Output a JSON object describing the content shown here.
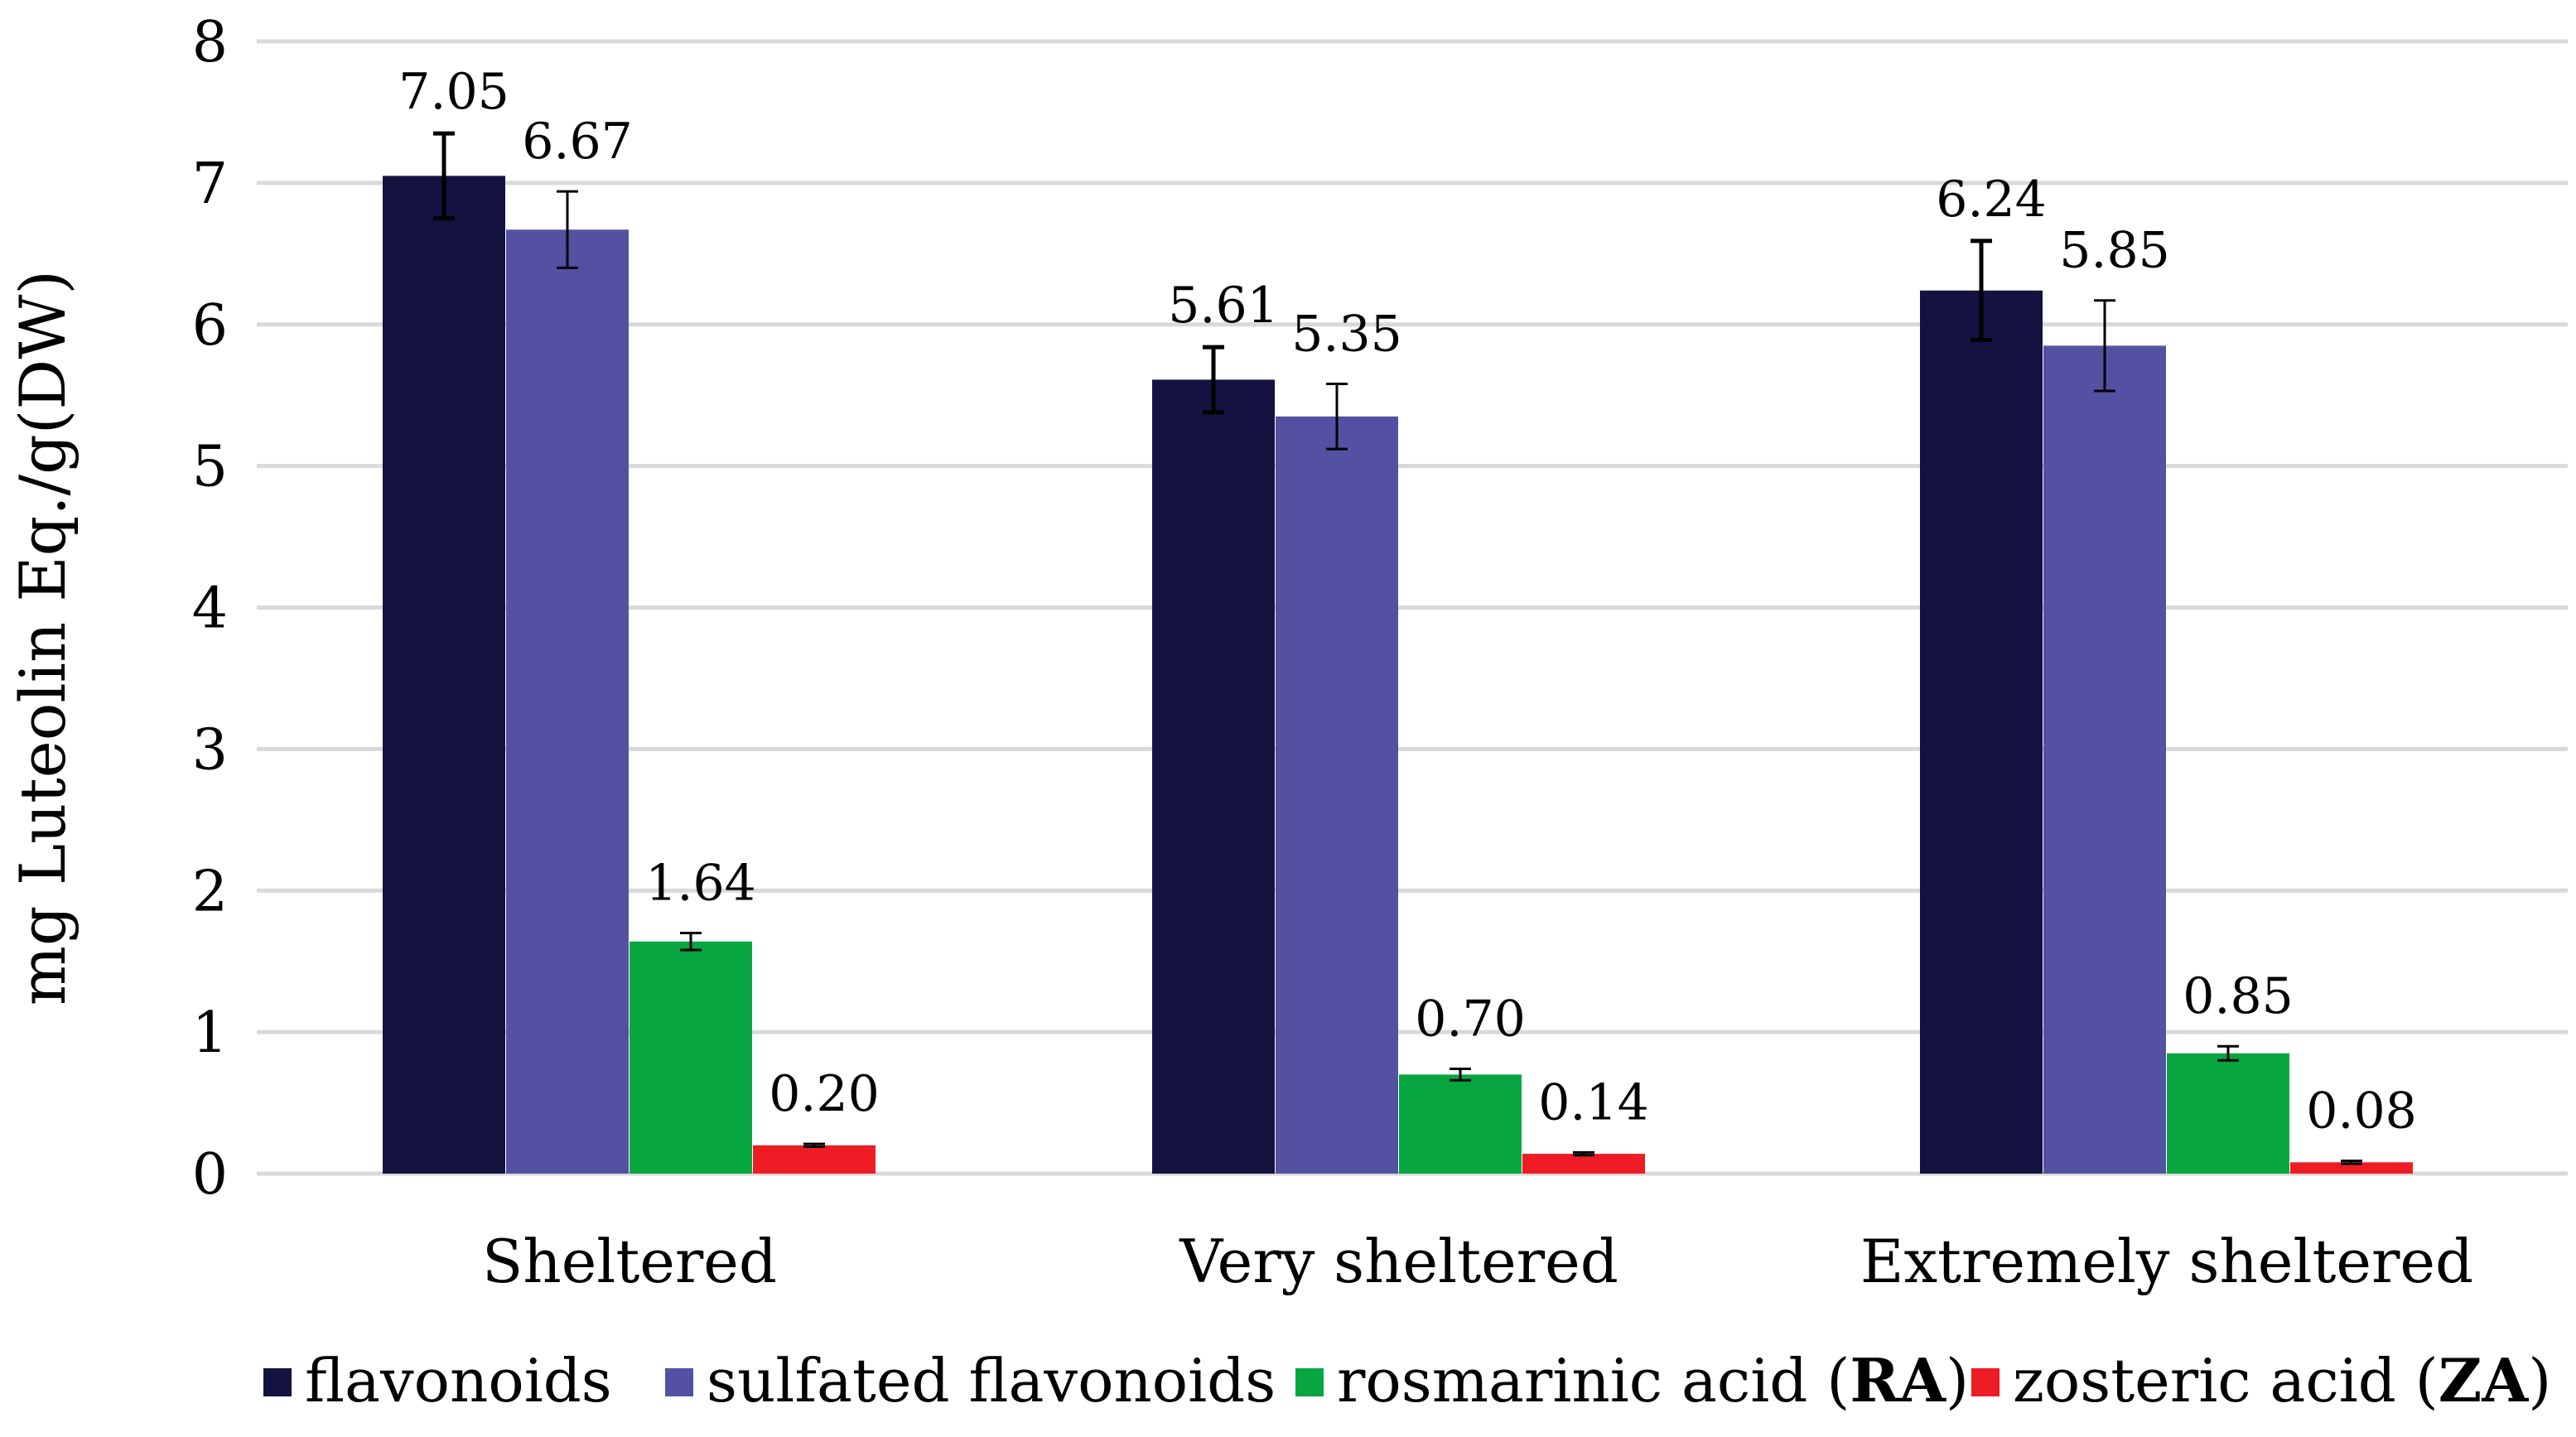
{
  "chart_data": {
    "type": "bar",
    "title": "",
    "xlabel": "",
    "ylabel": "mg Luteolin Eq./g(DW)",
    "ylim": [
      0,
      8
    ],
    "yticks": [
      0,
      1,
      2,
      3,
      4,
      5,
      6,
      7,
      8
    ],
    "grid": true,
    "legend_position": "bottom",
    "categories": [
      "Sheltered",
      "Very sheltered",
      "Extremely sheltered"
    ],
    "series": [
      {
        "name": "flavonoids",
        "name_parts": [
          {
            "text": "flavonoids",
            "bold": false
          }
        ],
        "color": "#14123f",
        "values": [
          7.05,
          5.61,
          6.24
        ],
        "labels": [
          "7.05",
          "5.61",
          "6.24"
        ],
        "errors": [
          0.3,
          0.23,
          0.35
        ]
      },
      {
        "name": "sulfated flavonoids",
        "name_parts": [
          {
            "text": "sulfated flavonoids",
            "bold": false
          }
        ],
        "color": "#5352a2",
        "values": [
          6.67,
          5.35,
          5.85
        ],
        "labels": [
          "6.67",
          "5.35",
          "5.85"
        ],
        "errors": [
          0.27,
          0.23,
          0.32
        ]
      },
      {
        "name": "rosmarinic acid (RA)",
        "name_parts": [
          {
            "text": "rosmarinic acid (",
            "bold": false
          },
          {
            "text": "RA",
            "bold": true
          },
          {
            "text": ")",
            "bold": false
          }
        ],
        "color": "#07a640",
        "values": [
          1.64,
          0.7,
          0.85
        ],
        "labels": [
          "1.64",
          "0.70",
          "0.85"
        ],
        "errors": [
          0.06,
          0.04,
          0.05
        ]
      },
      {
        "name": "zosteric acid (ZA)",
        "name_parts": [
          {
            "text": "zosteric acid (",
            "bold": false
          },
          {
            "text": "ZA",
            "bold": true
          },
          {
            "text": ")",
            "bold": false
          }
        ],
        "color": "#ee1c24",
        "values": [
          0.2,
          0.14,
          0.08
        ],
        "labels": [
          "0.20",
          "0.14",
          "0.08"
        ],
        "errors": [
          0.01,
          0.01,
          0.01
        ]
      }
    ]
  }
}
